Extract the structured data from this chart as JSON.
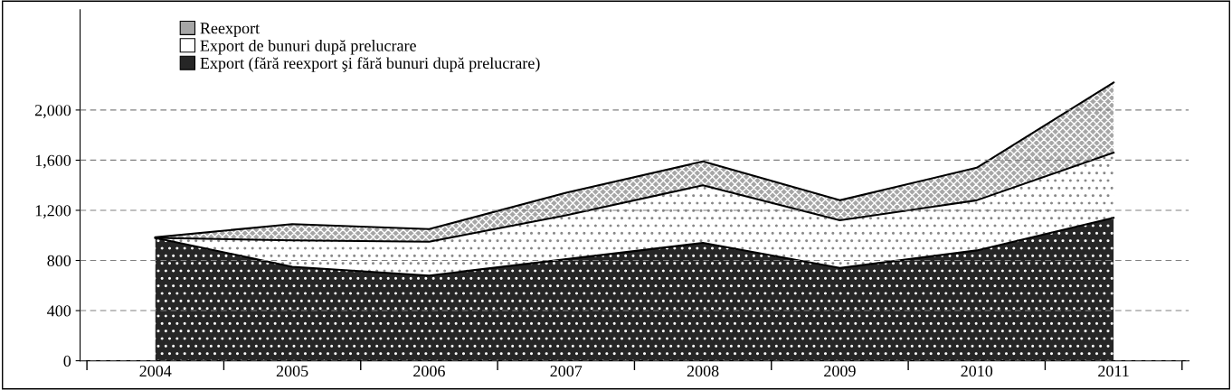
{
  "chart_data": {
    "type": "area",
    "stacked": true,
    "categories": [
      "2004",
      "2005",
      "2006",
      "2007",
      "2008",
      "2009",
      "2010",
      "2011"
    ],
    "series": [
      {
        "name": "Export (fără reexport şi fără bunuri după prelucrare)",
        "color": "#262626",
        "values": [
          980,
          750,
          680,
          810,
          940,
          740,
          880,
          1140
        ]
      },
      {
        "name": "Export de bunuri după prelucrare",
        "color": "#ffffff",
        "values": [
          0,
          210,
          270,
          350,
          460,
          380,
          400,
          520
        ]
      },
      {
        "name": "Reexport",
        "color": "#a6a6a6",
        "values": [
          5,
          130,
          100,
          180,
          190,
          160,
          260,
          560
        ]
      }
    ],
    "ylim": [
      0,
      2800
    ],
    "yticks": [
      0,
      400,
      800,
      {
        "value": 1200,
        "label": "1,200"
      },
      {
        "value": 1600,
        "label": "1,600"
      },
      {
        "value": 2000,
        "label": "2,000"
      }
    ],
    "grid": "y",
    "legend": "top left"
  }
}
